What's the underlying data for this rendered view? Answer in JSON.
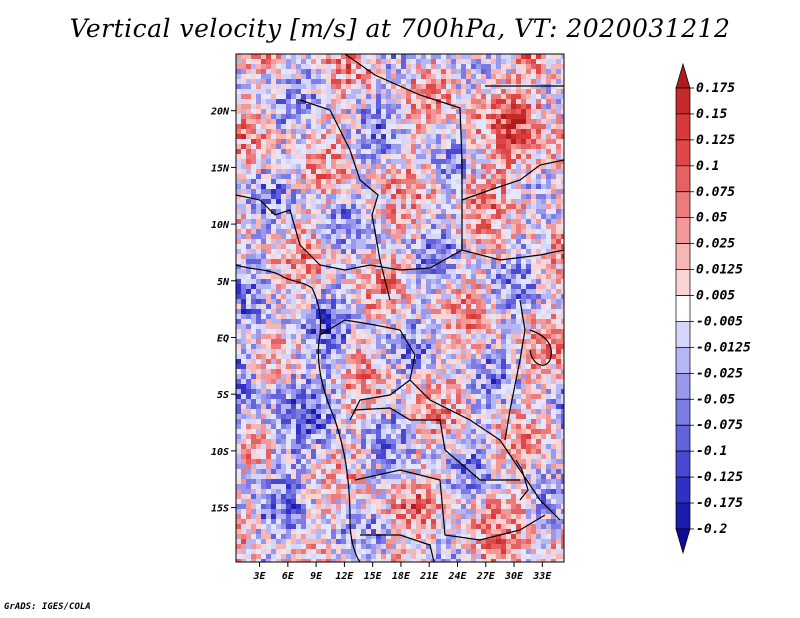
{
  "chart_data": {
    "type": "heatmap",
    "title": "Vertical velocity [m/s] at 700hPa, VT: 2020031212",
    "variable": "Vertical velocity",
    "units": "m/s",
    "level": "700hPa",
    "valid_time": "2020031212",
    "x_ticks": [
      "3E",
      "6E",
      "9E",
      "12E",
      "15E",
      "18E",
      "21E",
      "24E",
      "27E",
      "30E",
      "33E"
    ],
    "x_tick_values": [
      3,
      6,
      9,
      12,
      15,
      18,
      21,
      24,
      27,
      30,
      33
    ],
    "y_ticks": [
      "20N",
      "15N",
      "10N",
      "5N",
      "EQ",
      "5S",
      "10S",
      "15S"
    ],
    "y_tick_values": [
      20,
      15,
      10,
      5,
      0,
      -5,
      -10,
      -15
    ],
    "xlim": [
      0.5,
      35.3
    ],
    "ylim": [
      -19.8,
      25
    ],
    "colorbar": {
      "levels": [
        "0.175",
        "0.15",
        "0.125",
        "0.1",
        "0.075",
        "0.05",
        "0.025",
        "0.0125",
        "0.005",
        "-0.005",
        "-0.0125",
        "-0.025",
        "-0.05",
        "-0.075",
        "-0.1",
        "-0.125",
        "-0.175",
        "-0.2"
      ],
      "colors": [
        "#b01c1c",
        "#c42a2a",
        "#d83a3a",
        "#e04848",
        "#e66262",
        "#ec7c7c",
        "#f29898",
        "#f7b6b6",
        "#fbd4d4",
        "#ffffff",
        "#d6d6fa",
        "#b6b6f4",
        "#9898ec",
        "#7c7ce4",
        "#6262dc",
        "#4848d2",
        "#3030c4",
        "#1c1cae",
        "#0c0c96"
      ]
    }
  },
  "credit": "GrADS: IGES/COLA"
}
